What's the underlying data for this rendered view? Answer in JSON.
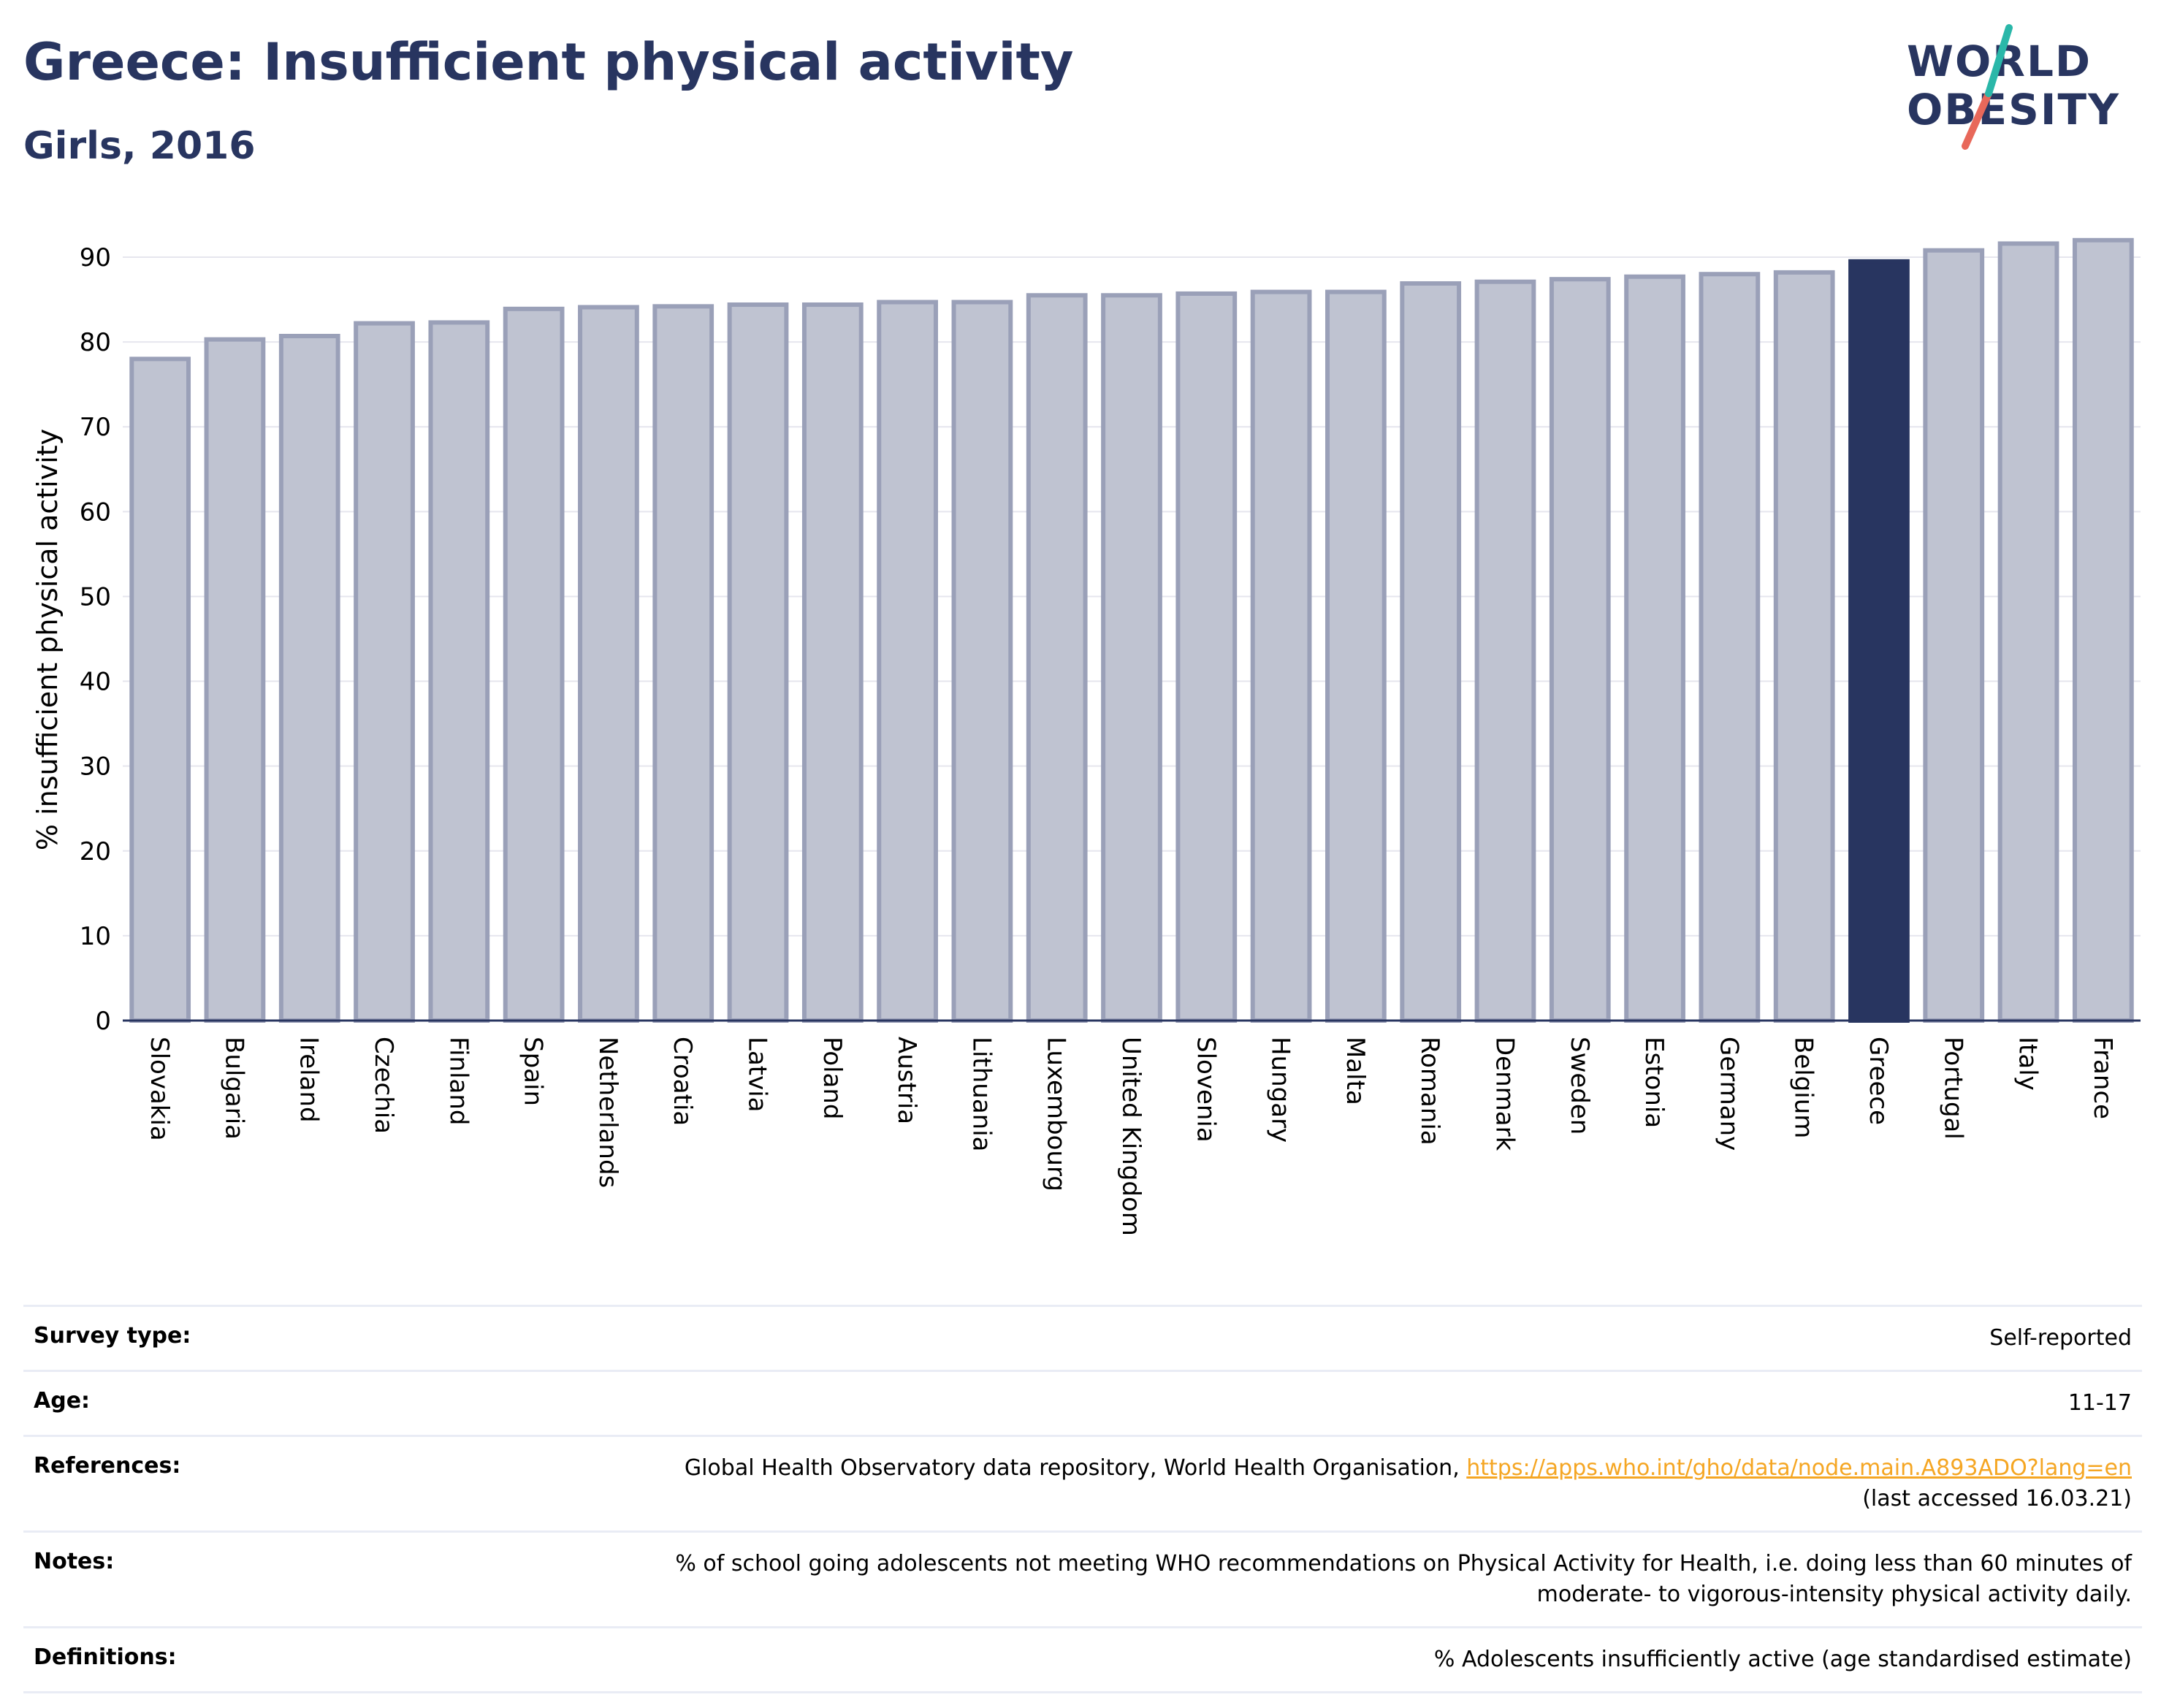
{
  "header": {
    "title": "Greece: Insufficient physical activity",
    "subtitle": "Girls, 2016"
  },
  "logo": {
    "line1": "WORLD",
    "line2": "OBESITY",
    "colors": {
      "text": "#283560",
      "slash_top": "#2ab7a9",
      "slash_bottom": "#e8685a"
    }
  },
  "colors": {
    "bar_default": "#bfc3d1",
    "bar_default_border": "#9aa0b8",
    "bar_highlight": "#283560",
    "grid": "#e6e6ee",
    "axis": "#283560"
  },
  "chart_data": {
    "type": "bar",
    "ylabel": "% insufficient physical activity",
    "xlabel": "",
    "ylim": [
      0,
      95
    ],
    "yticks": [
      0,
      10,
      20,
      30,
      40,
      50,
      60,
      70,
      80,
      90
    ],
    "grid": true,
    "highlight": "Greece",
    "categories": [
      "Slovakia",
      "Bulgaria",
      "Ireland",
      "Czechia",
      "Finland",
      "Spain",
      "Netherlands",
      "Croatia",
      "Latvia",
      "Poland",
      "Austria",
      "Lithuania",
      "Luxembourg",
      "United Kingdom",
      "Slovenia",
      "Hungary",
      "Malta",
      "Romania",
      "Denmark",
      "Sweden",
      "Estonia",
      "Germany",
      "Belgium",
      "Greece",
      "Portugal",
      "Italy",
      "France"
    ],
    "values": [
      78.0,
      80.3,
      80.7,
      82.2,
      82.3,
      83.9,
      84.1,
      84.2,
      84.4,
      84.4,
      84.7,
      84.7,
      85.5,
      85.5,
      85.7,
      85.9,
      85.9,
      86.9,
      87.1,
      87.4,
      87.7,
      88.0,
      88.2,
      89.5,
      90.8,
      91.6,
      92.0
    ]
  },
  "meta": {
    "survey_type_label": "Survey type:",
    "survey_type_value": "Self-reported",
    "age_label": "Age:",
    "age_value": "11-17",
    "references_label": "References:",
    "references_text": "Global Health Observatory data repository, World Health Organisation, ",
    "references_link": "https://apps.who.int/gho/data/node.main.A893ADO?lang=en",
    "references_note": "(last accessed 16.03.21)",
    "notes_label": "Notes:",
    "notes_line1": "% of school going adolescents not meeting WHO recommendations on Physical Activity for Health, i.e. doing less than 60 minutes of",
    "notes_line2": "moderate- to vigorous-intensity physical activity daily.",
    "definitions_label": "Definitions:",
    "definitions_value": "% Adolescents insufficiently active (age standardised estimate)"
  }
}
